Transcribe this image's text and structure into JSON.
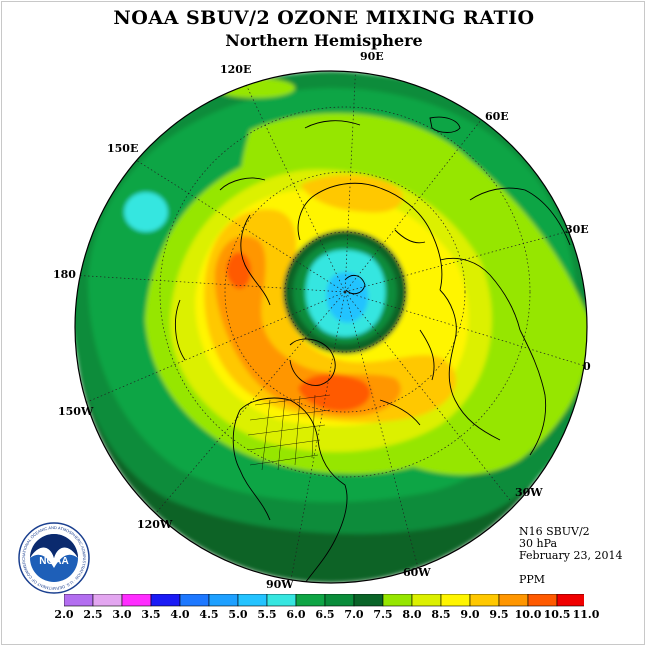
{
  "header": {
    "title": "NOAA SBUV/2 OZONE MIXING RATIO",
    "subtitle": "Northern Hemisphere"
  },
  "longitude_labels": {
    "lon_90e": "90E",
    "lon_60e": "60E",
    "lon_30e": "30E",
    "lon_0": "0",
    "lon_30w": "30W",
    "lon_60w": "60W",
    "lon_90w": "90W",
    "lon_120w": "120W",
    "lon_150w": "150W",
    "lon_180": "180",
    "lon_150e": "150E",
    "lon_120e": "120E"
  },
  "info": {
    "instrument": "N16 SBUV/2",
    "level": "30 hPa",
    "date": "February 23, 2014",
    "units": "PPM"
  },
  "logo": {
    "text": "NOAA",
    "ring_text": "NATIONAL OCEANIC AND ATMOSPHERIC ADMINISTRATION · U.S. DEPARTMENT OF COMMERCE"
  },
  "legend": {
    "labels": [
      "2.0",
      "2.5",
      "3.0",
      "3.5",
      "4.0",
      "4.5",
      "5.0",
      "5.5",
      "6.0",
      "6.5",
      "7.0",
      "7.5",
      "8.0",
      "8.5",
      "9.0",
      "9.5",
      "10.0",
      "10.5",
      "11.0"
    ],
    "colors": [
      "#b36ef0",
      "#e3a6f0",
      "#ff2dff",
      "#1b1bf5",
      "#1e78ff",
      "#1ea0ff",
      "#24c3ff",
      "#36e6e0",
      "#0fa545",
      "#0a8c3a",
      "#0a6428",
      "#96e600",
      "#dcf000",
      "#fff500",
      "#ffc800",
      "#ff9600",
      "#ff5a00",
      "#f00000",
      "#8c5a28"
    ]
  }
}
